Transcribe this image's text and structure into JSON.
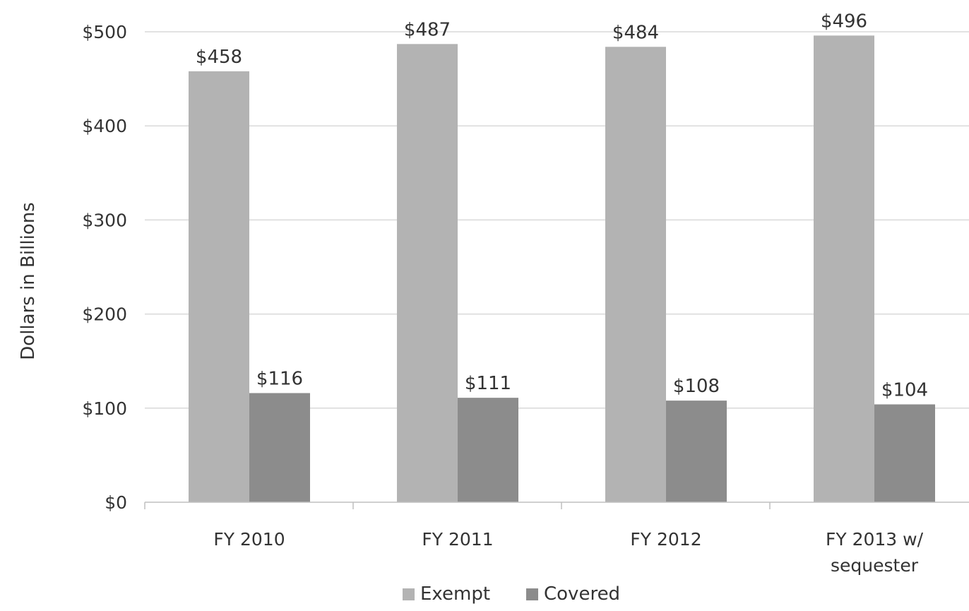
{
  "chart_data": {
    "type": "bar",
    "categories": [
      [
        "FY 2010"
      ],
      [
        "FY 2011"
      ],
      [
        "FY 2012"
      ],
      [
        "FY 2013 w/",
        "sequester"
      ]
    ],
    "series": [
      {
        "name": "Exempt",
        "values": [
          458,
          487,
          484,
          496
        ],
        "labels": [
          "$458",
          "$487",
          "$484",
          "$496"
        ],
        "color": "#b3b3b3"
      },
      {
        "name": "Covered",
        "values": [
          116,
          111,
          108,
          104
        ],
        "labels": [
          "$116",
          "$111",
          "$108",
          "$104"
        ],
        "color": "#8c8c8c"
      }
    ],
    "ylabel": "Dollars in Billions",
    "ylim": [
      0,
      500
    ],
    "yticks": [
      0,
      100,
      200,
      300,
      400,
      500
    ],
    "ytick_labels": [
      "$0",
      "$100",
      "$200",
      "$300",
      "$400",
      "$500"
    ],
    "grid": true,
    "legend_position": "bottom"
  }
}
